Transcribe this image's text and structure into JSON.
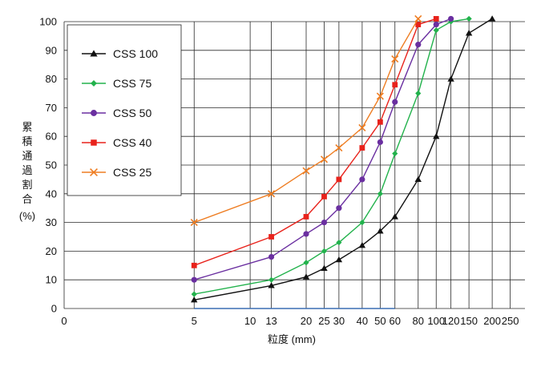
{
  "chart_data": {
    "type": "line",
    "xscale": "log",
    "xlabel": "粒度 (mm)",
    "ylabel_chars": [
      "累",
      "積",
      "通",
      "過",
      "割",
      "合"
    ],
    "ylabel_unit": "(%)",
    "xlim": [
      1,
      300
    ],
    "ylim": [
      0,
      100
    ],
    "x_ticks": [
      {
        "value": 1,
        "label": "0"
      },
      {
        "value": 5,
        "label": "5"
      },
      {
        "value": 10,
        "label": "10"
      },
      {
        "value": 13,
        "label": "13"
      },
      {
        "value": 20,
        "label": "20"
      },
      {
        "value": 25,
        "label": "25"
      },
      {
        "value": 30,
        "label": "30"
      },
      {
        "value": 40,
        "label": "40"
      },
      {
        "value": 50,
        "label": "50"
      },
      {
        "value": 60,
        "label": "60"
      },
      {
        "value": 80,
        "label": "80"
      },
      {
        "value": 100,
        "label": "100"
      },
      {
        "value": 120,
        "label": "120"
      },
      {
        "value": 150,
        "label": "150"
      },
      {
        "value": 200,
        "label": "200"
      },
      {
        "value": 250,
        "label": "250"
      }
    ],
    "y_ticks": [
      0,
      10,
      20,
      30,
      40,
      50,
      60,
      70,
      80,
      90,
      100
    ],
    "grid": true,
    "legend_position": "top-left",
    "series": [
      {
        "name": "CSS 100",
        "color": "#111111",
        "marker": "triangle",
        "x": [
          5,
          13,
          20,
          25,
          30,
          40,
          50,
          60,
          80,
          100,
          120,
          150,
          200
        ],
        "y": [
          3,
          8,
          11,
          14,
          17,
          22,
          27,
          32,
          45,
          60,
          80,
          96,
          101
        ]
      },
      {
        "name": "CSS 75",
        "color": "#22b24c",
        "marker": "diamond",
        "x": [
          5,
          13,
          20,
          25,
          30,
          40,
          50,
          60,
          80,
          100,
          120,
          150
        ],
        "y": [
          5,
          10,
          16,
          20,
          23,
          30,
          40,
          54,
          75,
          97,
          100,
          101
        ]
      },
      {
        "name": "CSS 50",
        "color": "#6a2fa0",
        "marker": "circle",
        "x": [
          5,
          13,
          20,
          25,
          30,
          40,
          50,
          60,
          80,
          100,
          120
        ],
        "y": [
          10,
          18,
          26,
          30,
          35,
          45,
          58,
          72,
          92,
          99,
          101
        ]
      },
      {
        "name": "CSS 40",
        "color": "#e8221b",
        "marker": "square",
        "x": [
          5,
          13,
          20,
          25,
          30,
          40,
          50,
          60,
          80,
          100
        ],
        "y": [
          15,
          25,
          32,
          39,
          45,
          56,
          65,
          78,
          99,
          101
        ]
      },
      {
        "name": "CSS 25",
        "color": "#ee7d22",
        "marker": "cross",
        "x": [
          5,
          13,
          20,
          25,
          30,
          40,
          50,
          60,
          80
        ],
        "y": [
          30,
          40,
          48,
          52,
          56,
          63,
          74,
          87,
          101
        ]
      }
    ]
  }
}
